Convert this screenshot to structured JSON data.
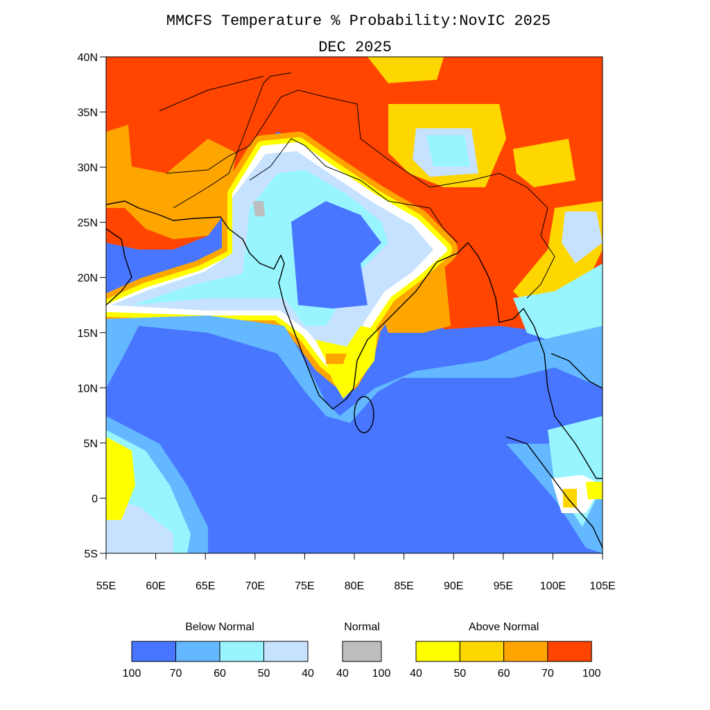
{
  "title": "MMCFS Temperature % Probability:NovIC 2025",
  "subtitle": "DEC 2025",
  "map": {
    "lat_labels": [
      "40N",
      "35N",
      "30N",
      "25N",
      "20N",
      "15N",
      "10N",
      "5N",
      "0",
      "5S"
    ],
    "lon_labels": [
      "55E",
      "60E",
      "65E",
      "70E",
      "75E",
      "80E",
      "85E",
      "90E",
      "95E",
      "100E",
      "105E"
    ]
  },
  "legend": [
    {
      "title": "Below Normal",
      "colors": [
        "#4876ff",
        "#63b8ff",
        "#98f5ff",
        "#c6e2ff"
      ],
      "labels": [
        100,
        70,
        60,
        50,
        40
      ]
    },
    {
      "title": "Normal",
      "colors": [
        "#bebebe"
      ],
      "labels": [
        40,
        100
      ]
    },
    {
      "title": "Above Normal",
      "colors": [
        "#ffff00",
        "#ffd700",
        "#ffa500",
        "#ff4500"
      ],
      "labels": [
        40,
        50,
        60,
        70,
        100
      ]
    }
  ]
}
